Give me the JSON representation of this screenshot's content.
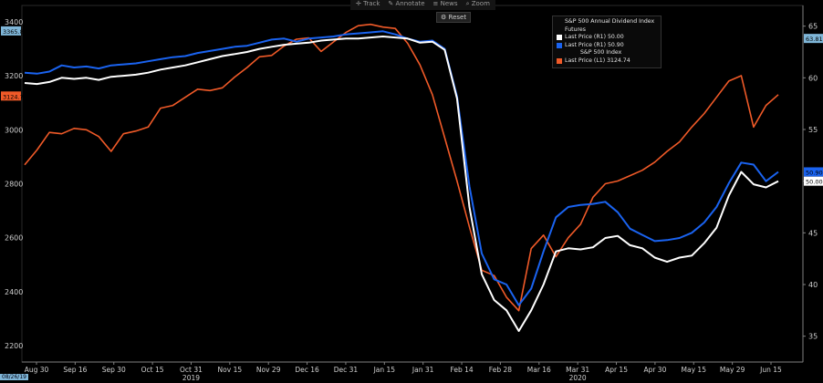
{
  "toolbar": {
    "track": "Track",
    "annotate": "Annotate",
    "news": "News",
    "zoom": "Zoom",
    "reset": "Reset"
  },
  "legend": {
    "title1": "S&P 500 Annual Dividend Index Futures",
    "row1": "Last Price (R1)  50.00",
    "row2": "Last Price (R1)  50.90",
    "title2": "S&P 500 Index",
    "row3": "Last Price (L1) 3124.74"
  },
  "corner_date": "08/26/19",
  "colors": {
    "white": "#ffffff",
    "blue": "#1a63f0",
    "orange": "#f05a28",
    "tag_blue": "#7fb6d8"
  },
  "chart_data": {
    "type": "line",
    "x_ticks": [
      "Aug 30",
      "Sep 16",
      "Sep 30",
      "Oct 15",
      "Oct 31",
      "Nov 15",
      "Nov 29",
      "Dec 16",
      "Dec 31",
      "Jan 15",
      "Jan 31",
      "Feb 14",
      "Feb 28",
      "Mar 16",
      "Mar 31",
      "Apr 15",
      "Apr 30",
      "May 15",
      "May 29",
      "Jun 15"
    ],
    "year_labels": [
      {
        "label": "2019",
        "at": "Oct 31"
      },
      {
        "label": "2020",
        "at": "Mar 31"
      }
    ],
    "left_axis": {
      "ticks": [
        2200,
        2400,
        2600,
        2800,
        3000,
        3200,
        3400
      ],
      "range": [
        2140,
        3460
      ]
    },
    "right_axis": {
      "ticks": [
        35,
        40,
        45,
        50,
        55,
        60,
        65
      ],
      "range": [
        32.5,
        67
      ]
    },
    "value_tags": [
      {
        "axis": "left",
        "value": 3365.81,
        "label": "3365.81",
        "color": "#7fb6d8"
      },
      {
        "axis": "left",
        "value": 3124.74,
        "label": "3124.74",
        "color": "#f05a28"
      },
      {
        "axis": "right",
        "value": 63.81,
        "label": "63.81",
        "color": "#7fb6d8"
      },
      {
        "axis": "right",
        "value": 50.9,
        "label": "50.90",
        "color": "#1a63f0"
      },
      {
        "axis": "right",
        "value": 50.0,
        "label": "50.00",
        "color": "#ffffff"
      }
    ],
    "series": [
      {
        "name": "S&P 500 Index",
        "axis": "left",
        "color": "#f05a28",
        "points": [
          [
            0,
            2870
          ],
          [
            1,
            2925
          ],
          [
            2,
            2990
          ],
          [
            3,
            2985
          ],
          [
            4,
            3005
          ],
          [
            5,
            3000
          ],
          [
            6,
            2975
          ],
          [
            7,
            2920
          ],
          [
            8,
            2985
          ],
          [
            9,
            2995
          ],
          [
            10,
            3010
          ],
          [
            11,
            3080
          ],
          [
            12,
            3090
          ],
          [
            13,
            3120
          ],
          [
            14,
            3150
          ],
          [
            15,
            3145
          ],
          [
            16,
            3155
          ],
          [
            17,
            3195
          ],
          [
            18,
            3230
          ],
          [
            19,
            3270
          ],
          [
            20,
            3275
          ],
          [
            21,
            3310
          ],
          [
            22,
            3335
          ],
          [
            23,
            3340
          ],
          [
            24,
            3290
          ],
          [
            25,
            3325
          ],
          [
            26,
            3360
          ],
          [
            27,
            3385
          ],
          [
            28,
            3390
          ],
          [
            29,
            3380
          ],
          [
            30,
            3375
          ],
          [
            31,
            3320
          ],
          [
            32,
            3240
          ],
          [
            33,
            3130
          ],
          [
            34,
            2970
          ],
          [
            35,
            2810
          ],
          [
            36,
            2640
          ],
          [
            37,
            2480
          ],
          [
            38,
            2460
          ],
          [
            39,
            2380
          ],
          [
            40,
            2330
          ],
          [
            41,
            2560
          ],
          [
            42,
            2610
          ],
          [
            43,
            2530
          ],
          [
            44,
            2600
          ],
          [
            45,
            2650
          ],
          [
            46,
            2750
          ],
          [
            47,
            2800
          ],
          [
            48,
            2810
          ],
          [
            49,
            2830
          ],
          [
            50,
            2850
          ],
          [
            51,
            2880
          ],
          [
            52,
            2920
          ],
          [
            53,
            2955
          ],
          [
            54,
            3010
          ],
          [
            55,
            3060
          ],
          [
            56,
            3120
          ],
          [
            57,
            3180
          ],
          [
            58,
            3200
          ],
          [
            59,
            3010
          ],
          [
            60,
            3090
          ],
          [
            61,
            3130
          ]
        ]
      },
      {
        "name": "S&P 500 Annual Dividend Index Futures",
        "axis": "right",
        "color": "#1a63f0",
        "points": [
          [
            0,
            60.5
          ],
          [
            1,
            60.4
          ],
          [
            2,
            60.6
          ],
          [
            3,
            61.2
          ],
          [
            4,
            61.0
          ],
          [
            5,
            61.1
          ],
          [
            6,
            60.9
          ],
          [
            7,
            61.2
          ],
          [
            8,
            61.3
          ],
          [
            9,
            61.4
          ],
          [
            10,
            61.6
          ],
          [
            11,
            61.8
          ],
          [
            12,
            62.0
          ],
          [
            13,
            62.1
          ],
          [
            14,
            62.4
          ],
          [
            15,
            62.6
          ],
          [
            16,
            62.8
          ],
          [
            17,
            63.0
          ],
          [
            18,
            63.1
          ],
          [
            19,
            63.4
          ],
          [
            20,
            63.7
          ],
          [
            21,
            63.8
          ],
          [
            22,
            63.5
          ],
          [
            23,
            63.8
          ],
          [
            24,
            63.9
          ],
          [
            25,
            64.0
          ],
          [
            26,
            64.2
          ],
          [
            27,
            64.3
          ],
          [
            28,
            64.4
          ],
          [
            29,
            64.5
          ],
          [
            30,
            64.2
          ],
          [
            31,
            63.8
          ],
          [
            32,
            63.5
          ],
          [
            33,
            63.6
          ],
          [
            34,
            62.8
          ],
          [
            35,
            58.2
          ],
          [
            36,
            49.5
          ],
          [
            37,
            43.0
          ],
          [
            38,
            40.5
          ],
          [
            39,
            40.0
          ],
          [
            40,
            38.0
          ],
          [
            41,
            39.6
          ],
          [
            42,
            43.2
          ],
          [
            43,
            46.5
          ],
          [
            44,
            47.5
          ],
          [
            45,
            47.7
          ],
          [
            46,
            47.8
          ],
          [
            47,
            48.0
          ],
          [
            48,
            47.0
          ],
          [
            49,
            45.4
          ],
          [
            50,
            44.8
          ],
          [
            51,
            44.2
          ],
          [
            52,
            44.3
          ],
          [
            53,
            44.5
          ],
          [
            54,
            45.0
          ],
          [
            55,
            46.0
          ],
          [
            56,
            47.5
          ],
          [
            57,
            49.8
          ],
          [
            58,
            51.8
          ],
          [
            59,
            51.6
          ],
          [
            60,
            50.0
          ],
          [
            61,
            50.9
          ]
        ]
      },
      {
        "name": "S&P 500 Annual Dividend Index Futures",
        "axis": "right",
        "color": "#ffffff",
        "points": [
          [
            0,
            59.5
          ],
          [
            1,
            59.4
          ],
          [
            2,
            59.6
          ],
          [
            3,
            60.0
          ],
          [
            4,
            59.9
          ],
          [
            5,
            60.0
          ],
          [
            6,
            59.8
          ],
          [
            7,
            60.1
          ],
          [
            8,
            60.2
          ],
          [
            9,
            60.3
          ],
          [
            10,
            60.5
          ],
          [
            11,
            60.8
          ],
          [
            12,
            61.0
          ],
          [
            13,
            61.2
          ],
          [
            14,
            61.5
          ],
          [
            15,
            61.8
          ],
          [
            16,
            62.1
          ],
          [
            17,
            62.3
          ],
          [
            18,
            62.5
          ],
          [
            19,
            62.8
          ],
          [
            20,
            63.0
          ],
          [
            21,
            63.2
          ],
          [
            22,
            63.3
          ],
          [
            23,
            63.4
          ],
          [
            24,
            63.6
          ],
          [
            25,
            63.7
          ],
          [
            26,
            63.8
          ],
          [
            27,
            63.8
          ],
          [
            28,
            63.9
          ],
          [
            29,
            64.0
          ],
          [
            30,
            63.9
          ],
          [
            31,
            63.8
          ],
          [
            32,
            63.4
          ],
          [
            33,
            63.5
          ],
          [
            34,
            62.7
          ],
          [
            35,
            58.0
          ],
          [
            36,
            47.5
          ],
          [
            37,
            41.0
          ],
          [
            38,
            38.5
          ],
          [
            39,
            37.5
          ],
          [
            40,
            35.5
          ],
          [
            41,
            37.5
          ],
          [
            42,
            40.0
          ],
          [
            43,
            43.2
          ],
          [
            44,
            43.5
          ],
          [
            45,
            43.4
          ],
          [
            46,
            43.6
          ],
          [
            47,
            44.5
          ],
          [
            48,
            44.7
          ],
          [
            49,
            43.8
          ],
          [
            50,
            43.5
          ],
          [
            51,
            42.6
          ],
          [
            52,
            42.2
          ],
          [
            53,
            42.6
          ],
          [
            54,
            42.8
          ],
          [
            55,
            44.0
          ],
          [
            56,
            45.5
          ],
          [
            57,
            48.6
          ],
          [
            58,
            50.9
          ],
          [
            59,
            49.7
          ],
          [
            60,
            49.4
          ],
          [
            61,
            50.0
          ]
        ]
      }
    ]
  }
}
